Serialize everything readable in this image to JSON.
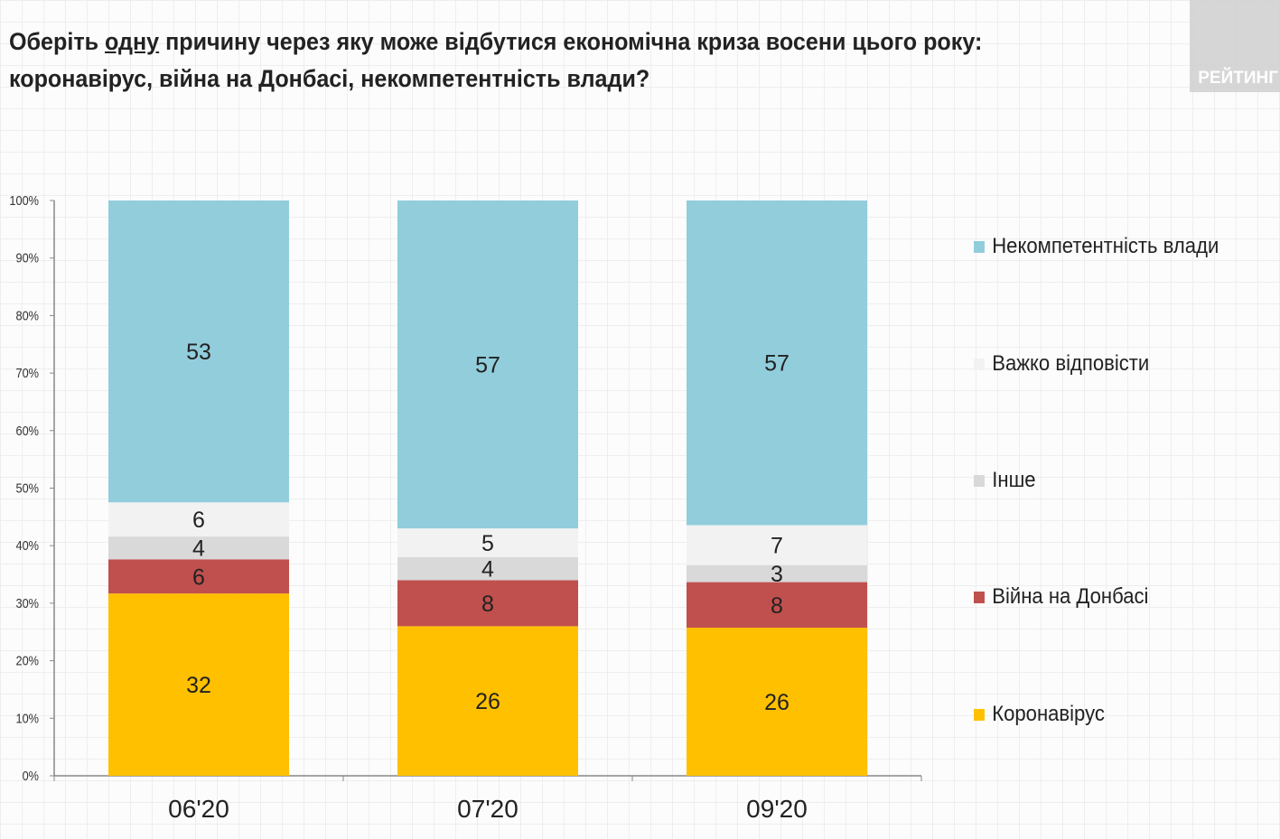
{
  "title": {
    "line1_before": "Оберіть ",
    "line1_underlined": "одну",
    "line1_after": " причину через яку може відбутися економічна криза восени цього року:",
    "line2": "коронавірус, війна на Донбасі, некомпетентність влади?"
  },
  "logo_text": "РЕЙТИНГ",
  "chart_data": {
    "type": "bar",
    "stacked": true,
    "categories": [
      "06'20",
      "07'20",
      "09'20"
    ],
    "ylim": [
      0,
      100
    ],
    "yticks": [
      "0%",
      "10%",
      "20%",
      "30%",
      "40%",
      "50%",
      "60%",
      "70%",
      "80%",
      "90%",
      "100%"
    ],
    "grid": false,
    "legend_position": "right",
    "series": [
      {
        "name": "Коронавірус",
        "color": "#ffc000",
        "values": [
          32,
          26,
          26
        ]
      },
      {
        "name": "Війна на Донбасі",
        "color": "#c0504d",
        "values": [
          6,
          8,
          8
        ]
      },
      {
        "name": "Інше",
        "color": "#d9d9d9",
        "values": [
          4,
          4,
          3
        ]
      },
      {
        "name": "Важко відповісти",
        "color": "#f2f2f2",
        "values": [
          6,
          5,
          7
        ]
      },
      {
        "name": "Некомпетентність влади",
        "color": "#92cddc",
        "values": [
          53,
          57,
          57
        ]
      }
    ]
  }
}
